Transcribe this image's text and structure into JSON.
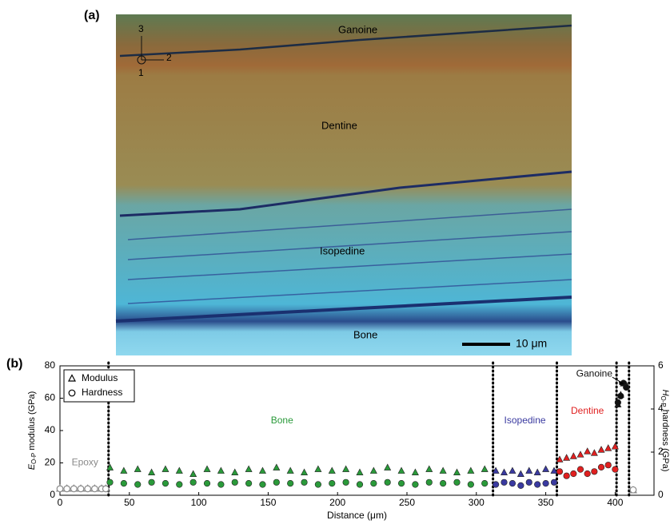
{
  "figure": {
    "panel_a": "(a)",
    "panel_b": "(b)",
    "layers": [
      "Ganoine",
      "Dentine",
      "Isopedine",
      "Bone"
    ],
    "scale_bar": "10 μm",
    "axes_labels": [
      "3",
      "2",
      "1"
    ]
  },
  "chart_data": {
    "type": "scatter",
    "x_label": "Distance (μm)",
    "y_label": {
      "symbol": "E",
      "subscript": "O-P",
      "text": " modulus (GPa)"
    },
    "y2_label": {
      "symbol": "H",
      "subscript": "O-P",
      "text": " hardness (GPa)"
    },
    "xlim": [
      0,
      428
    ],
    "xticks": [
      0,
      50,
      100,
      150,
      200,
      250,
      300,
      350,
      400
    ],
    "ylim": [
      0,
      80
    ],
    "yticks": [
      0,
      20,
      40,
      60,
      80
    ],
    "y2lim": [
      0,
      6
    ],
    "y2ticks": [
      0,
      2,
      4,
      6
    ],
    "boundaries": [
      35,
      312,
      358,
      401,
      410
    ],
    "legend": [
      {
        "label": "Modulus",
        "marker": "triangle"
      },
      {
        "label": "Hardness",
        "marker": "circle"
      }
    ],
    "legend_corner": "upper left",
    "regions": [
      {
        "label": "Epoxy",
        "color": "#8a8a8a"
      },
      {
        "label": "Bone",
        "color": "#2a9a3a"
      },
      {
        "label": "Isopedine",
        "color": "#3a3aa0"
      },
      {
        "label": "Dentine",
        "color": "#e02020"
      },
      {
        "label": "Ganoine",
        "color": "#111111"
      }
    ],
    "series": [
      {
        "color": "#8a8a8a",
        "marker": "triangle",
        "open": true,
        "x": [
          0,
          5,
          10,
          15,
          20,
          25,
          30,
          33,
          413
        ],
        "values": [
          4,
          4,
          4,
          4,
          4,
          4,
          4,
          4,
          3
        ]
      },
      {
        "color": "#8a8a8a",
        "marker": "circle",
        "open": true,
        "axis": "y2",
        "x": [
          0,
          5,
          10,
          15,
          20,
          25,
          30,
          33,
          413
        ],
        "values": [
          0.3,
          0.3,
          0.3,
          0.3,
          0.3,
          0.3,
          0.3,
          0.3,
          0.25
        ]
      },
      {
        "color": "#2a9a3a",
        "marker": "triangle",
        "x": [
          36,
          46,
          56,
          66,
          76,
          86,
          96,
          106,
          116,
          126,
          136,
          146,
          156,
          166,
          176,
          186,
          196,
          206,
          216,
          226,
          236,
          246,
          256,
          266,
          276,
          286,
          296,
          306
        ],
        "values": [
          17,
          15,
          16,
          14,
          16,
          15,
          13,
          16,
          15,
          14,
          16,
          15,
          17,
          15,
          14,
          16,
          15,
          16,
          14,
          15,
          17,
          15,
          14,
          16,
          15,
          14,
          15,
          16
        ]
      },
      {
        "color": "#2a9a3a",
        "marker": "circle",
        "axis": "y2",
        "x": [
          36,
          46,
          56,
          66,
          76,
          86,
          96,
          106,
          116,
          126,
          136,
          146,
          156,
          166,
          176,
          186,
          196,
          206,
          216,
          226,
          236,
          246,
          256,
          266,
          276,
          286,
          296,
          306
        ],
        "values": [
          0.6,
          0.55,
          0.5,
          0.6,
          0.55,
          0.5,
          0.6,
          0.55,
          0.5,
          0.6,
          0.55,
          0.5,
          0.6,
          0.55,
          0.6,
          0.5,
          0.55,
          0.6,
          0.5,
          0.55,
          0.6,
          0.55,
          0.5,
          0.6,
          0.55,
          0.6,
          0.5,
          0.55
        ]
      },
      {
        "color": "#3a3aa0",
        "marker": "triangle",
        "x": [
          314,
          320,
          326,
          332,
          338,
          344,
          350,
          356
        ],
        "values": [
          15,
          14,
          15,
          13,
          15,
          14,
          16,
          15
        ]
      },
      {
        "color": "#3a3aa0",
        "marker": "circle",
        "axis": "y2",
        "x": [
          314,
          320,
          326,
          332,
          338,
          344,
          350,
          356
        ],
        "values": [
          0.5,
          0.6,
          0.55,
          0.45,
          0.6,
          0.5,
          0.55,
          0.6
        ]
      },
      {
        "color": "#e02020",
        "marker": "triangle",
        "x": [
          360,
          365,
          370,
          375,
          380,
          385,
          390,
          395,
          400
        ],
        "values": [
          22,
          23,
          24,
          25,
          27,
          26,
          28,
          29,
          30
        ]
      },
      {
        "color": "#e02020",
        "marker": "circle",
        "axis": "y2",
        "x": [
          360,
          365,
          370,
          375,
          380,
          385,
          390,
          395,
          400
        ],
        "values": [
          1.1,
          0.9,
          1.0,
          1.2,
          1.0,
          1.1,
          1.3,
          1.4,
          1.2
        ]
      },
      {
        "color": "#111111",
        "marker": "triangle",
        "x": [
          402,
          404,
          406,
          408
        ],
        "values": [
          56,
          62,
          69,
          68
        ]
      },
      {
        "color": "#111111",
        "marker": "circle",
        "axis": "y2",
        "x": [
          402,
          404,
          406,
          408
        ],
        "values": [
          4.3,
          4.6,
          5.2,
          5.0
        ]
      }
    ]
  }
}
